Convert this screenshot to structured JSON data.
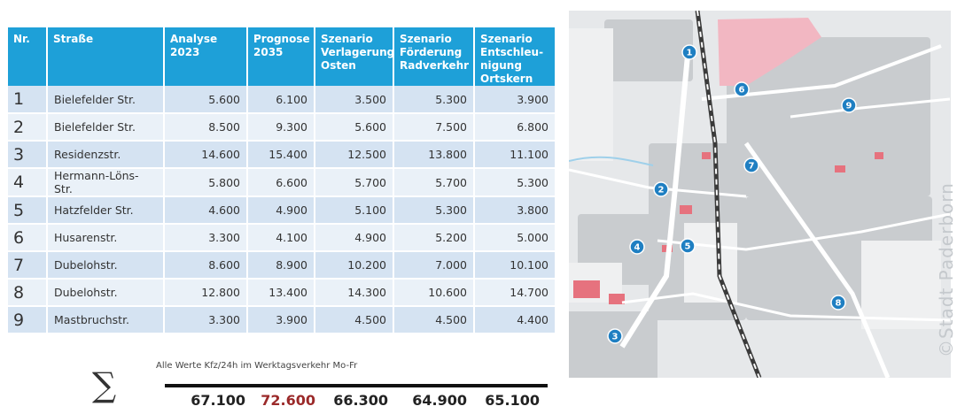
{
  "table": {
    "headers": [
      "Nr.",
      "Straße",
      "Analyse\n2023",
      "Prognose\n2035",
      "Szenario\nVerlagerung\nOsten",
      "Szenario\nFörderung\nRadverkehr",
      "Szenario\nEntschleu-\nnigung\nOrtskern"
    ],
    "rows": [
      {
        "nr": "1",
        "street": "Bielefelder Str.",
        "analyse": "5.600",
        "prognose": "6.100",
        "osten": "3.500",
        "rad": "5.300",
        "ortskern": "3.900"
      },
      {
        "nr": "2",
        "street": "Bielefelder Str.",
        "analyse": "8.500",
        "prognose": "9.300",
        "osten": "5.600",
        "rad": "7.500",
        "ortskern": "6.800"
      },
      {
        "nr": "3",
        "street": "Residenzstr.",
        "analyse": "14.600",
        "prognose": "15.400",
        "osten": "12.500",
        "rad": "13.800",
        "ortskern": "11.100"
      },
      {
        "nr": "4",
        "street": "Hermann-Löns-Str.",
        "analyse": "5.800",
        "prognose": "6.600",
        "osten": "5.700",
        "rad": "5.700",
        "ortskern": "5.300"
      },
      {
        "nr": "5",
        "street": "Hatzfelder Str.",
        "analyse": "4.600",
        "prognose": "4.900",
        "osten": "5.100",
        "rad": "5.300",
        "ortskern": "3.800"
      },
      {
        "nr": "6",
        "street": "Husarenstr.",
        "analyse": "3.300",
        "prognose": "4.100",
        "osten": "4.900",
        "rad": "5.200",
        "ortskern": "5.000"
      },
      {
        "nr": "7",
        "street": "Dubelohstr.",
        "analyse": "8.600",
        "prognose": "8.900",
        "osten": "10.200",
        "rad": "7.000",
        "ortskern": "10.100"
      },
      {
        "nr": "8",
        "street": "Dubelohstr.",
        "analyse": "12.800",
        "prognose": "13.400",
        "osten": "14.300",
        "rad": "10.600",
        "ortskern": "14.700"
      },
      {
        "nr": "9",
        "street": "Mastbruchstr.",
        "analyse": "3.300",
        "prognose": "3.900",
        "osten": "4.500",
        "rad": "4.500",
        "ortskern": "4.400"
      }
    ]
  },
  "footnote": "Alle Werte Kfz/24h im Werktagsverkehr Mo-Fr",
  "sum_symbol": "∑",
  "sums": [
    {
      "value": "67.100",
      "color": "#222222"
    },
    {
      "value": "72.600",
      "color": "#9b2a2a"
    },
    {
      "value": "66.300",
      "color": "#222222"
    },
    {
      "value": "64.900",
      "color": "#222222"
    },
    {
      "value": "65.100",
      "color": "#222222"
    }
  ],
  "map": {
    "markers": [
      {
        "label": "1"
      },
      {
        "label": "2"
      },
      {
        "label": "3"
      },
      {
        "label": "4"
      },
      {
        "label": "5"
      },
      {
        "label": "6"
      },
      {
        "label": "7"
      },
      {
        "label": "8"
      },
      {
        "label": "9"
      }
    ],
    "credit": "©Stadt Paderborn",
    "colors": {
      "marker": "#1f7fc2",
      "industrial": "#f2b7c2",
      "roads": "#ffffff",
      "land": "#e6e8ea",
      "blocks": "#c9cccf"
    }
  }
}
